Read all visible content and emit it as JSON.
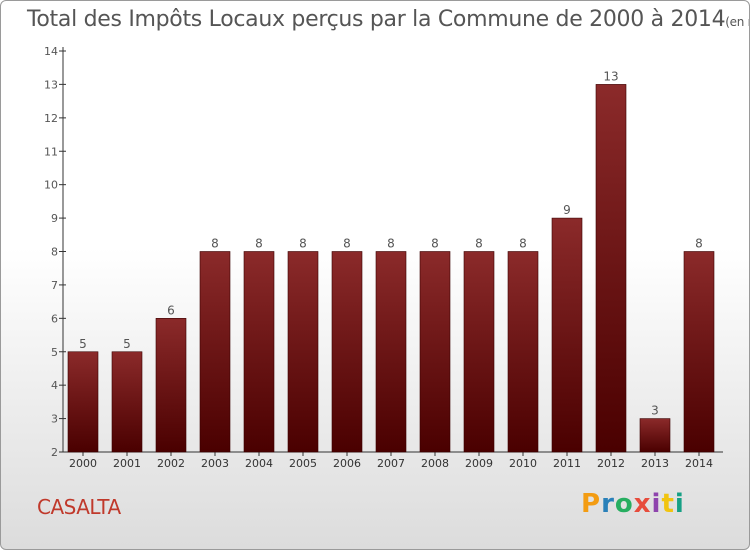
{
  "header": {
    "title": "Total des Impôts Locaux perçus par la Commune de 2000 à 2014",
    "unit": "(en milliers d'€)"
  },
  "footer": {
    "commune": "CASALTA",
    "brand": "Proxiti",
    "brand_colors": [
      "#f39c12",
      "#2980b9",
      "#27ae60",
      "#e74c3c",
      "#8e44ad",
      "#f1c40f",
      "#16a085"
    ]
  },
  "chart_data": {
    "type": "bar",
    "title": "Total des Impôts Locaux perçus par la Commune de 2000 à 2014",
    "xlabel": "",
    "ylabel": "",
    "ylim": [
      2,
      14
    ],
    "yticks": [
      2,
      3,
      4,
      5,
      6,
      7,
      8,
      9,
      10,
      11,
      12,
      13,
      14
    ],
    "grid": false,
    "bar_color_top": "#8b2a2a",
    "bar_color_bottom": "#4a0000",
    "categories": [
      "2000",
      "2001",
      "2002",
      "2003",
      "2004",
      "2005",
      "2006",
      "2007",
      "2008",
      "2009",
      "2010",
      "2011",
      "2012",
      "2013",
      "2014"
    ],
    "values": [
      5,
      5,
      6,
      8,
      8,
      8,
      8,
      8,
      8,
      8,
      8,
      9,
      13,
      3,
      8
    ]
  }
}
